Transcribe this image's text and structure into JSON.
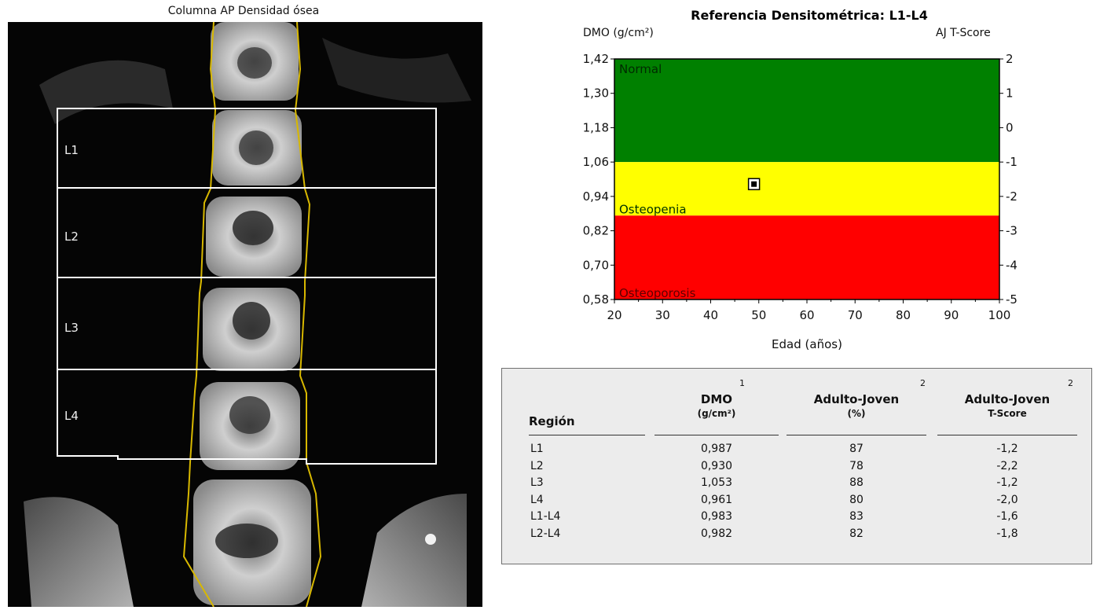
{
  "image_panel": {
    "title": "Columna AP Densidad ósea",
    "regions": [
      "L1",
      "L2",
      "L3",
      "L4"
    ]
  },
  "chart_data": {
    "type": "scatter",
    "title": "Referencia Densitométrica: L1-L4",
    "ylabel": "DMO (g/cm²)",
    "y2label": "AJ T-Score",
    "xlabel": "Edad (años)",
    "xlim": [
      20,
      100
    ],
    "ylim": [
      0.58,
      1.42
    ],
    "y2lim": [
      -5,
      2
    ],
    "x_ticks": [
      "20",
      "30",
      "40",
      "50",
      "60",
      "70",
      "80",
      "90",
      "100"
    ],
    "y_ticks": [
      "1,42",
      "1,30",
      "1,18",
      "1,06",
      "0,94",
      "0,82",
      "0,70",
      "0,58"
    ],
    "y2_ticks": [
      "2",
      "1",
      "0",
      "-1",
      "-2",
      "-3",
      "-4",
      "-5"
    ],
    "bands": [
      {
        "label": "Normal",
        "from": 1.06,
        "to": 1.42,
        "color": "#008000"
      },
      {
        "label": "Osteopenia",
        "from": 0.873,
        "to": 1.06,
        "color": "#ffff00"
      },
      {
        "label": "Osteoporosis",
        "from": 0.58,
        "to": 0.873,
        "color": "#ff0000"
      }
    ],
    "points": [
      {
        "x": 49,
        "y": 0.983
      }
    ]
  },
  "table": {
    "headers": {
      "region": "Región",
      "dmo": "DMO",
      "dmo_unit": "(g/cm²)",
      "dmo_sup": "1",
      "pct": "Adulto-Joven",
      "pct_unit": "(%)",
      "pct_sup": "2",
      "tscore": "Adulto-Joven",
      "tscore_unit": "T-Score",
      "tscore_sup": "2"
    },
    "rows": [
      {
        "region": "L1",
        "dmo": "0,987",
        "pct": "87",
        "tscore": "-1,2"
      },
      {
        "region": "L2",
        "dmo": "0,930",
        "pct": "78",
        "tscore": "-2,2"
      },
      {
        "region": "L3",
        "dmo": "1,053",
        "pct": "88",
        "tscore": "-1,2"
      },
      {
        "region": "L4",
        "dmo": "0,961",
        "pct": "80",
        "tscore": "-2,0"
      },
      {
        "region": "L1-L4",
        "dmo": "0,983",
        "pct": "83",
        "tscore": "-1,6"
      },
      {
        "region": "L2-L4",
        "dmo": "0,982",
        "pct": "82",
        "tscore": "-1,8"
      }
    ]
  }
}
